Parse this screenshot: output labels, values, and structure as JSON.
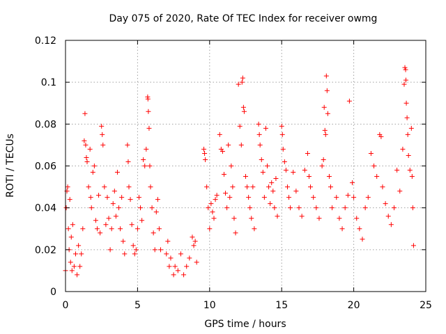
{
  "chart_data": {
    "type": "scatter",
    "title": "Day 075 of 2020, Rate Of TEC Index for receiver owmg",
    "xlabel": "GPS time / hours",
    "ylabel": "ROTI / TECUs",
    "xlim": [
      0,
      25
    ],
    "ylim": [
      0,
      0.12
    ],
    "x_ticks": [
      "0",
      "5",
      "10",
      "15",
      "20",
      "25"
    ],
    "y_ticks": [
      "0",
      "0.02",
      "0.04",
      "0.06",
      "0.08",
      "0.1",
      "0.12"
    ],
    "x_tick_values": [
      0,
      5,
      10,
      15,
      20,
      25
    ],
    "y_tick_values": [
      0,
      0.02,
      0.04,
      0.06,
      0.08,
      0.1,
      0.12
    ],
    "grid": true,
    "marker": "+",
    "color": "#ff0000",
    "series": [
      {
        "points": [
          [
            0.0,
            0.01
          ],
          [
            0.05,
            0.04
          ],
          [
            0.1,
            0.048
          ],
          [
            0.15,
            0.05
          ],
          [
            0.2,
            0.03
          ],
          [
            0.25,
            0.02
          ],
          [
            0.3,
            0.044
          ],
          [
            0.35,
            0.014
          ],
          [
            0.4,
            0.026
          ],
          [
            0.45,
            0.01
          ],
          [
            0.5,
            0.032
          ],
          [
            0.6,
            0.012
          ],
          [
            0.7,
            0.018
          ],
          [
            0.8,
            0.008
          ],
          [
            0.9,
            0.022
          ],
          [
            1.0,
            0.012
          ],
          [
            1.1,
            0.018
          ],
          [
            1.2,
            0.03
          ],
          [
            1.3,
            0.072
          ],
          [
            1.35,
            0.085
          ],
          [
            1.4,
            0.07
          ],
          [
            1.45,
            0.064
          ],
          [
            1.5,
            0.062
          ],
          [
            1.6,
            0.05
          ],
          [
            1.7,
            0.068
          ],
          [
            1.75,
            0.045
          ],
          [
            1.8,
            0.04
          ],
          [
            1.9,
            0.057
          ],
          [
            2.0,
            0.06
          ],
          [
            2.1,
            0.034
          ],
          [
            2.2,
            0.03
          ],
          [
            2.3,
            0.046
          ],
          [
            2.4,
            0.028
          ],
          [
            2.5,
            0.079
          ],
          [
            2.55,
            0.075
          ],
          [
            2.6,
            0.07
          ],
          [
            2.7,
            0.05
          ],
          [
            2.8,
            0.032
          ],
          [
            2.9,
            0.045
          ],
          [
            3.0,
            0.035
          ],
          [
            3.1,
            0.02
          ],
          [
            3.2,
            0.03
          ],
          [
            3.3,
            0.042
          ],
          [
            3.4,
            0.048
          ],
          [
            3.5,
            0.036
          ],
          [
            3.6,
            0.057
          ],
          [
            3.7,
            0.04
          ],
          [
            3.8,
            0.03
          ],
          [
            3.9,
            0.045
          ],
          [
            4.0,
            0.024
          ],
          [
            4.1,
            0.018
          ],
          [
            4.3,
            0.07
          ],
          [
            4.35,
            0.062
          ],
          [
            4.4,
            0.05
          ],
          [
            4.5,
            0.044
          ],
          [
            4.6,
            0.032
          ],
          [
            4.7,
            0.022
          ],
          [
            4.8,
            0.018
          ],
          [
            4.9,
            0.02
          ],
          [
            5.0,
            0.03
          ],
          [
            5.1,
            0.045
          ],
          [
            5.2,
            0.04
          ],
          [
            5.3,
            0.034
          ],
          [
            5.4,
            0.063
          ],
          [
            5.5,
            0.06
          ],
          [
            5.6,
            0.068
          ],
          [
            5.7,
            0.093
          ],
          [
            5.72,
            0.092
          ],
          [
            5.75,
            0.086
          ],
          [
            5.8,
            0.078
          ],
          [
            5.85,
            0.06
          ],
          [
            5.9,
            0.05
          ],
          [
            6.0,
            0.04
          ],
          [
            6.1,
            0.028
          ],
          [
            6.2,
            0.02
          ],
          [
            6.3,
            0.038
          ],
          [
            6.4,
            0.044
          ],
          [
            6.5,
            0.03
          ],
          [
            6.6,
            0.02
          ],
          [
            7.0,
            0.018
          ],
          [
            7.1,
            0.024
          ],
          [
            7.2,
            0.012
          ],
          [
            7.3,
            0.016
          ],
          [
            7.5,
            0.008
          ],
          [
            7.6,
            0.012
          ],
          [
            7.8,
            0.01
          ],
          [
            8.0,
            0.018
          ],
          [
            8.2,
            0.008
          ],
          [
            8.4,
            0.012
          ],
          [
            8.6,
            0.016
          ],
          [
            8.8,
            0.026
          ],
          [
            8.9,
            0.022
          ],
          [
            9.0,
            0.024
          ],
          [
            9.1,
            0.014
          ],
          [
            9.6,
            0.068
          ],
          [
            9.65,
            0.066
          ],
          [
            9.7,
            0.063
          ],
          [
            9.8,
            0.05
          ],
          [
            9.9,
            0.04
          ],
          [
            10.0,
            0.03
          ],
          [
            10.1,
            0.042
          ],
          [
            10.2,
            0.038
          ],
          [
            10.3,
            0.035
          ],
          [
            10.4,
            0.044
          ],
          [
            10.5,
            0.046
          ],
          [
            10.7,
            0.075
          ],
          [
            10.8,
            0.068
          ],
          [
            10.9,
            0.067
          ],
          [
            11.0,
            0.056
          ],
          [
            11.1,
            0.047
          ],
          [
            11.2,
            0.04
          ],
          [
            11.3,
            0.07
          ],
          [
            11.4,
            0.045
          ],
          [
            11.5,
            0.06
          ],
          [
            11.6,
            0.05
          ],
          [
            11.7,
            0.035
          ],
          [
            11.8,
            0.028
          ],
          [
            12.0,
            0.099
          ],
          [
            12.1,
            0.079
          ],
          [
            12.2,
            0.07
          ],
          [
            12.25,
            0.1
          ],
          [
            12.3,
            0.102
          ],
          [
            12.35,
            0.088
          ],
          [
            12.4,
            0.086
          ],
          [
            12.5,
            0.055
          ],
          [
            12.6,
            0.05
          ],
          [
            12.7,
            0.045
          ],
          [
            12.8,
            0.04
          ],
          [
            12.9,
            0.035
          ],
          [
            13.0,
            0.05
          ],
          [
            13.1,
            0.03
          ],
          [
            13.4,
            0.08
          ],
          [
            13.45,
            0.075
          ],
          [
            13.5,
            0.07
          ],
          [
            13.6,
            0.063
          ],
          [
            13.7,
            0.057
          ],
          [
            13.8,
            0.045
          ],
          [
            13.9,
            0.078
          ],
          [
            14.0,
            0.06
          ],
          [
            14.1,
            0.05
          ],
          [
            14.2,
            0.042
          ],
          [
            14.3,
            0.052
          ],
          [
            14.4,
            0.048
          ],
          [
            14.5,
            0.04
          ],
          [
            14.6,
            0.054
          ],
          [
            14.7,
            0.036
          ],
          [
            15.0,
            0.079
          ],
          [
            15.05,
            0.075
          ],
          [
            15.1,
            0.068
          ],
          [
            15.2,
            0.062
          ],
          [
            15.3,
            0.058
          ],
          [
            15.4,
            0.05
          ],
          [
            15.5,
            0.045
          ],
          [
            15.6,
            0.04
          ],
          [
            15.8,
            0.057
          ],
          [
            16.0,
            0.048
          ],
          [
            16.2,
            0.04
          ],
          [
            16.4,
            0.036
          ],
          [
            16.6,
            0.058
          ],
          [
            16.8,
            0.066
          ],
          [
            16.9,
            0.055
          ],
          [
            17.0,
            0.05
          ],
          [
            17.2,
            0.045
          ],
          [
            17.4,
            0.04
          ],
          [
            17.6,
            0.035
          ],
          [
            17.8,
            0.06
          ],
          [
            17.9,
            0.063
          ],
          [
            17.95,
            0.088
          ],
          [
            18.0,
            0.077
          ],
          [
            18.05,
            0.075
          ],
          [
            18.1,
            0.103
          ],
          [
            18.15,
            0.096
          ],
          [
            18.2,
            0.085
          ],
          [
            18.3,
            0.055
          ],
          [
            18.4,
            0.05
          ],
          [
            18.5,
            0.04
          ],
          [
            18.8,
            0.045
          ],
          [
            19.0,
            0.035
          ],
          [
            19.2,
            0.03
          ],
          [
            19.4,
            0.04
          ],
          [
            19.6,
            0.046
          ],
          [
            19.7,
            0.091
          ],
          [
            19.9,
            0.052
          ],
          [
            20.0,
            0.045
          ],
          [
            20.2,
            0.035
          ],
          [
            20.4,
            0.03
          ],
          [
            20.6,
            0.025
          ],
          [
            20.8,
            0.04
          ],
          [
            21.0,
            0.045
          ],
          [
            21.2,
            0.066
          ],
          [
            21.4,
            0.06
          ],
          [
            21.6,
            0.055
          ],
          [
            21.8,
            0.075
          ],
          [
            21.9,
            0.074
          ],
          [
            22.0,
            0.05
          ],
          [
            22.2,
            0.042
          ],
          [
            22.4,
            0.036
          ],
          [
            22.6,
            0.032
          ],
          [
            22.8,
            0.04
          ],
          [
            23.0,
            0.058
          ],
          [
            23.2,
            0.048
          ],
          [
            23.4,
            0.068
          ],
          [
            23.5,
            0.099
          ],
          [
            23.55,
            0.107
          ],
          [
            23.6,
            0.106
          ],
          [
            23.62,
            0.101
          ],
          [
            23.65,
            0.09
          ],
          [
            23.7,
            0.083
          ],
          [
            23.75,
            0.075
          ],
          [
            23.8,
            0.065
          ],
          [
            23.9,
            0.058
          ],
          [
            24.0,
            0.078
          ],
          [
            24.05,
            0.055
          ],
          [
            24.1,
            0.04
          ],
          [
            24.15,
            0.022
          ]
        ]
      }
    ]
  }
}
